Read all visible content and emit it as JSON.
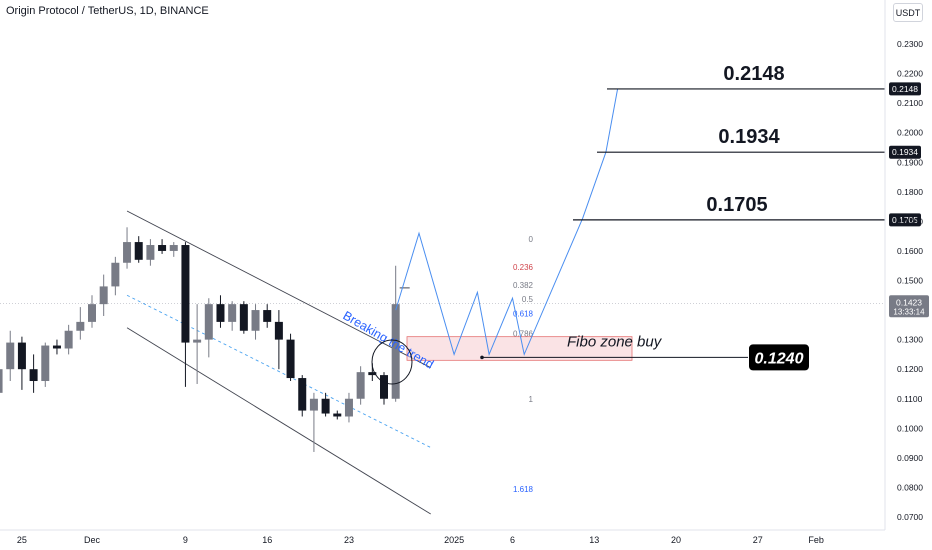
{
  "title": "Origin Protocol / TetherUS, 1D, BINANCE",
  "currency": "USDT",
  "chart_data": {
    "type": "candlestick",
    "price_axis": {
      "ticks": [
        "0.2300",
        "0.2200",
        "0.2100",
        "0.2000",
        "0.1900",
        "0.1800",
        "0.1700",
        "0.1600",
        "0.1500",
        "0.1400",
        "0.1300",
        "0.1200",
        "0.1100",
        "0.1000",
        "0.0900",
        "0.0800",
        "0.0700"
      ],
      "ylim": [
        0.067,
        0.235
      ]
    },
    "time_axis": {
      "labels": [
        {
          "label": "25",
          "day": -6
        },
        {
          "label": "Dec",
          "day": 0
        },
        {
          "label": "9",
          "day": 8
        },
        {
          "label": "16",
          "day": 15
        },
        {
          "label": "23",
          "day": 22
        },
        {
          "label": "2025",
          "day": 31
        },
        {
          "label": "6",
          "day": 36
        },
        {
          "label": "13",
          "day": 43
        },
        {
          "label": "20",
          "day": 50
        },
        {
          "label": "27",
          "day": 57
        },
        {
          "label": "Feb",
          "day": 62
        }
      ]
    },
    "candles": [
      {
        "day": -8,
        "o": 0.112,
        "h": 0.124,
        "l": 0.108,
        "c": 0.12
      },
      {
        "day": -7,
        "o": 0.12,
        "h": 0.133,
        "l": 0.116,
        "c": 0.129
      },
      {
        "day": -6,
        "o": 0.129,
        "h": 0.131,
        "l": 0.113,
        "c": 0.12
      },
      {
        "day": -5,
        "o": 0.12,
        "h": 0.125,
        "l": 0.112,
        "c": 0.116
      },
      {
        "day": -4,
        "o": 0.116,
        "h": 0.129,
        "l": 0.114,
        "c": 0.128
      },
      {
        "day": -3,
        "o": 0.128,
        "h": 0.13,
        "l": 0.125,
        "c": 0.127
      },
      {
        "day": -2,
        "o": 0.127,
        "h": 0.135,
        "l": 0.125,
        "c": 0.133
      },
      {
        "day": -1,
        "o": 0.133,
        "h": 0.141,
        "l": 0.13,
        "c": 0.136
      },
      {
        "day": 0,
        "o": 0.136,
        "h": 0.145,
        "l": 0.134,
        "c": 0.142
      },
      {
        "day": 1,
        "o": 0.142,
        "h": 0.152,
        "l": 0.138,
        "c": 0.148
      },
      {
        "day": 2,
        "o": 0.148,
        "h": 0.158,
        "l": 0.145,
        "c": 0.156
      },
      {
        "day": 3,
        "o": 0.156,
        "h": 0.168,
        "l": 0.154,
        "c": 0.163
      },
      {
        "day": 4,
        "o": 0.163,
        "h": 0.165,
        "l": 0.156,
        "c": 0.157
      },
      {
        "day": 5,
        "o": 0.157,
        "h": 0.164,
        "l": 0.155,
        "c": 0.162
      },
      {
        "day": 6,
        "o": 0.162,
        "h": 0.164,
        "l": 0.159,
        "c": 0.16
      },
      {
        "day": 7,
        "o": 0.16,
        "h": 0.163,
        "l": 0.158,
        "c": 0.162
      },
      {
        "day": 8,
        "o": 0.162,
        "h": 0.163,
        "l": 0.114,
        "c": 0.129
      },
      {
        "day": 9,
        "o": 0.129,
        "h": 0.142,
        "l": 0.115,
        "c": 0.13
      },
      {
        "day": 10,
        "o": 0.13,
        "h": 0.144,
        "l": 0.124,
        "c": 0.142
      },
      {
        "day": 11,
        "o": 0.142,
        "h": 0.145,
        "l": 0.134,
        "c": 0.136
      },
      {
        "day": 12,
        "o": 0.136,
        "h": 0.143,
        "l": 0.133,
        "c": 0.142
      },
      {
        "day": 13,
        "o": 0.142,
        "h": 0.143,
        "l": 0.132,
        "c": 0.133
      },
      {
        "day": 14,
        "o": 0.133,
        "h": 0.142,
        "l": 0.13,
        "c": 0.14
      },
      {
        "day": 15,
        "o": 0.14,
        "h": 0.142,
        "l": 0.134,
        "c": 0.136
      },
      {
        "day": 16,
        "o": 0.136,
        "h": 0.14,
        "l": 0.12,
        "c": 0.13
      },
      {
        "day": 17,
        "o": 0.13,
        "h": 0.132,
        "l": 0.116,
        "c": 0.117
      },
      {
        "day": 18,
        "o": 0.117,
        "h": 0.118,
        "l": 0.104,
        "c": 0.106
      },
      {
        "day": 19,
        "o": 0.106,
        "h": 0.112,
        "l": 0.092,
        "c": 0.11
      },
      {
        "day": 20,
        "o": 0.11,
        "h": 0.112,
        "l": 0.104,
        "c": 0.105
      },
      {
        "day": 21,
        "o": 0.105,
        "h": 0.106,
        "l": 0.103,
        "c": 0.104
      },
      {
        "day": 22,
        "o": 0.104,
        "h": 0.112,
        "l": 0.102,
        "c": 0.11
      },
      {
        "day": 23,
        "o": 0.11,
        "h": 0.121,
        "l": 0.108,
        "c": 0.119
      },
      {
        "day": 24,
        "o": 0.119,
        "h": 0.122,
        "l": 0.116,
        "c": 0.118
      },
      {
        "day": 25,
        "o": 0.118,
        "h": 0.119,
        "l": 0.108,
        "c": 0.11
      },
      {
        "day": 26,
        "o": 0.11,
        "h": 0.155,
        "l": 0.109,
        "c": 0.142
      }
    ],
    "forecast_path": [
      {
        "day": 26,
        "price": 0.14
      },
      {
        "day": 28,
        "price": 0.166
      },
      {
        "day": 31,
        "price": 0.125
      },
      {
        "day": 33,
        "price": 0.146
      },
      {
        "day": 34,
        "price": 0.125
      },
      {
        "day": 36,
        "price": 0.144
      },
      {
        "day": 37,
        "price": 0.125
      },
      {
        "day": 42,
        "price": 0.171
      },
      {
        "day": 44,
        "price": 0.1934
      },
      {
        "day": 45,
        "price": 0.2148
      }
    ],
    "channel": {
      "upper": [
        {
          "day": 3,
          "price": 0.1735
        },
        {
          "day": 29,
          "price": 0.1205
        }
      ],
      "middle": [
        {
          "day": 3,
          "price": 0.145
        },
        {
          "day": 29,
          "price": 0.0935
        }
      ],
      "lower": [
        {
          "day": 3,
          "price": 0.134
        },
        {
          "day": 29,
          "price": 0.071
        }
      ]
    },
    "fib_levels": [
      {
        "label": "0",
        "price": 0.164,
        "color": "#787b86"
      },
      {
        "label": "0.236",
        "price": 0.1545,
        "color": "#d0454c"
      },
      {
        "label": "0.382",
        "price": 0.1485,
        "color": "#787b86"
      },
      {
        "label": "0.5",
        "price": 0.1437,
        "color": "#787b86"
      },
      {
        "label": "0.618",
        "price": 0.1389,
        "color": "#2962ff"
      },
      {
        "label": "0.786",
        "price": 0.1321,
        "color": "#787b86"
      },
      {
        "label": "1",
        "price": 0.11,
        "color": "#787b86"
      },
      {
        "label": "1.618",
        "price": 0.0795,
        "color": "#2962ff"
      }
    ],
    "buy_zone": {
      "label": "Fibo zone buy",
      "top": 0.131,
      "bottom": 0.123
    },
    "buy_entry": {
      "label": "0.1240",
      "price": 0.124
    },
    "targets": [
      {
        "label": "0.2148",
        "price": 0.2148
      },
      {
        "label": "0.1934",
        "price": 0.1934
      },
      {
        "label": "0.1705",
        "price": 0.1705
      }
    ],
    "annotation": "Breaking the trend",
    "current_price": {
      "value": "0.1423",
      "countdown": "13:33:14"
    },
    "colors": {
      "bull": "#787b86",
      "bear": "#131722",
      "forecast": "#4a8ef0",
      "annotation": "#2962ff",
      "zone_fill": "#f8d7da",
      "zone_border": "#e57373"
    }
  }
}
